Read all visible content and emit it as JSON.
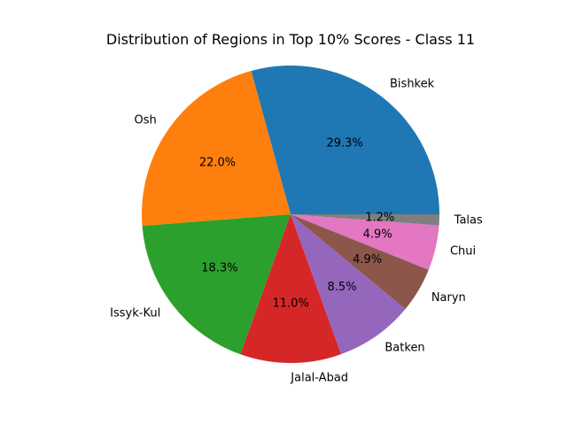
{
  "chart_data": {
    "type": "pie",
    "title": "Distribution of Regions in Top 10% Scores - Class 11",
    "categories": [
      "Bishkek",
      "Osh",
      "Issyk-Kul",
      "Jalal-Abad",
      "Batken",
      "Naryn",
      "Chui",
      "Talas"
    ],
    "values": [
      29.3,
      22.0,
      18.3,
      11.0,
      8.5,
      4.9,
      4.9,
      1.2
    ],
    "percent_labels": [
      "29.3%",
      "22.0%",
      "18.3%",
      "11.0%",
      "8.5%",
      "4.9%",
      "4.9%",
      "1.2%"
    ],
    "colors": [
      "#1f77b4",
      "#ff7f0e",
      "#2ca02c",
      "#d62728",
      "#9467bd",
      "#8c564b",
      "#e377c2",
      "#7f7f7f"
    ],
    "start_angle_deg": 0,
    "direction": "counterclockwise"
  }
}
